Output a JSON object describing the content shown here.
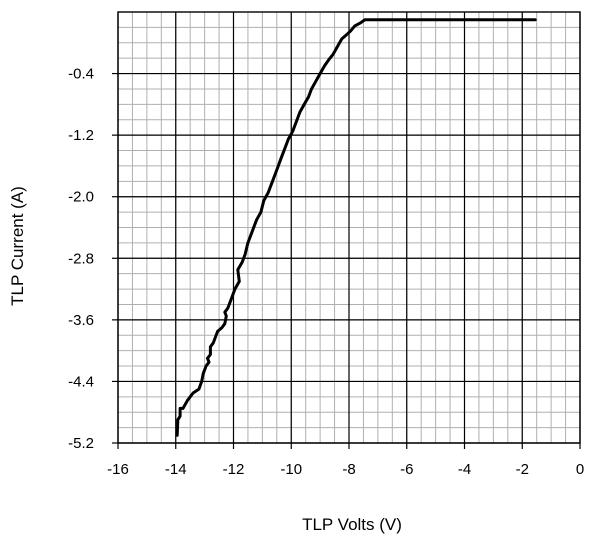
{
  "chart_data": {
    "type": "line",
    "title": "",
    "xlabel": "TLP Volts (V)",
    "ylabel": "TLP Current (A)",
    "xlim": [
      -16,
      0
    ],
    "ylim": [
      -5.2,
      0.4
    ],
    "x_ticks": [
      -16,
      -14,
      -12,
      -10,
      -8,
      -6,
      -4,
      -2,
      0
    ],
    "x_tick_labels": [
      "-16",
      "-14",
      "-12",
      "-10",
      "-8",
      "-6",
      "-4",
      "-2",
      "0"
    ],
    "y_ticks": [
      -0.4,
      -1.2,
      -2.0,
      -2.8,
      -3.6,
      -4.4,
      -5.2
    ],
    "y_tick_labels": [
      "-0.4",
      "-1.2",
      "-2.0",
      "-2.8",
      "-3.6",
      "-4.4",
      "-5.2"
    ],
    "grid": true,
    "minor_grid_step": {
      "x": 0.5,
      "y": 0.2
    },
    "legend": "none",
    "series": [
      {
        "color": "#000000",
        "x": [
          -13.95,
          -13.93,
          -13.85,
          -13.85,
          -13.75,
          -13.6,
          -13.5,
          -13.4,
          -13.2,
          -13.1,
          -13.05,
          -12.95,
          -12.85,
          -12.9,
          -12.8,
          -12.8,
          -12.7,
          -12.65,
          -12.55,
          -12.4,
          -12.3,
          -12.25,
          -12.3,
          -12.2,
          -12.15,
          -12.05,
          -11.95,
          -11.8,
          -11.85,
          -11.7,
          -11.6,
          -11.5,
          -11.4,
          -11.3,
          -11.2,
          -11.05,
          -10.95,
          -10.8,
          -10.7,
          -10.55,
          -10.45,
          -10.35,
          -10.2,
          -10.1,
          -9.95,
          -9.85,
          -9.7,
          -9.55,
          -9.4,
          -9.3,
          -9.15,
          -9.0,
          -8.85,
          -8.7,
          -8.55,
          -8.4,
          -8.25,
          -8.1,
          -7.95,
          -7.8,
          -7.6,
          -7.45,
          -7.2,
          -5.0,
          -3.0,
          -1.55
        ],
        "y": [
          -5.1,
          -4.9,
          -4.85,
          -4.75,
          -4.75,
          -4.65,
          -4.6,
          -4.55,
          -4.5,
          -4.4,
          -4.3,
          -4.2,
          -4.15,
          -4.1,
          -4.05,
          -3.95,
          -3.9,
          -3.85,
          -3.75,
          -3.7,
          -3.65,
          -3.55,
          -3.5,
          -3.45,
          -3.4,
          -3.3,
          -3.2,
          -3.1,
          -2.95,
          -2.85,
          -2.75,
          -2.6,
          -2.5,
          -2.4,
          -2.3,
          -2.2,
          -2.05,
          -1.95,
          -1.85,
          -1.7,
          -1.6,
          -1.5,
          -1.35,
          -1.25,
          -1.15,
          -1.05,
          -0.9,
          -0.8,
          -0.7,
          -0.6,
          -0.5,
          -0.4,
          -0.3,
          -0.22,
          -0.15,
          -0.05,
          0.05,
          0.1,
          0.15,
          0.22,
          0.26,
          0.3,
          0.3,
          0.3,
          0.3,
          0.3
        ]
      }
    ]
  }
}
